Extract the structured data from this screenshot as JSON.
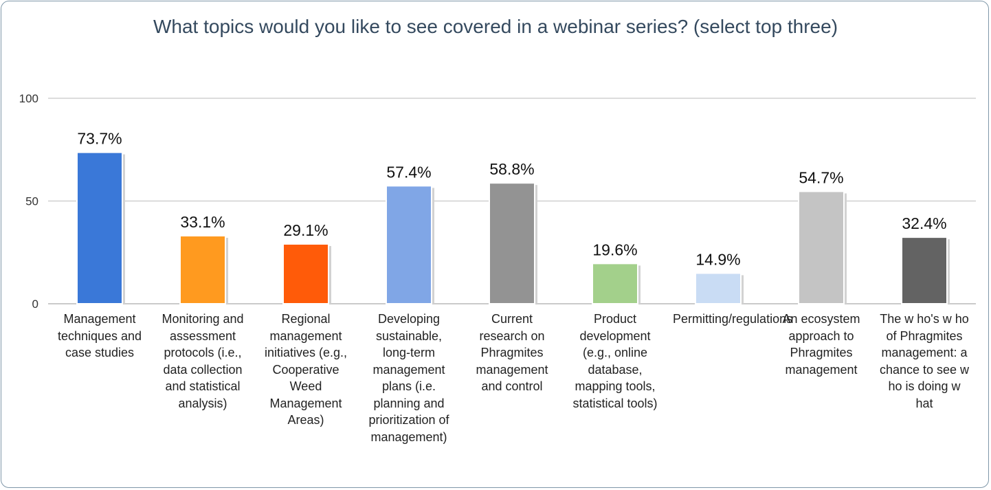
{
  "chart_data": {
    "type": "bar",
    "title": "What topics would you like to see covered in a webinar series? (select top three)",
    "xlabel": "",
    "ylabel": "",
    "ylim": [
      0,
      100
    ],
    "yticks": [
      0,
      50,
      100
    ],
    "grid": true,
    "legend": "none",
    "categories": [
      "Management techniques and case studies",
      "Monitoring and assessment protocols (i.e., data collection and statistical analysis)",
      "Regional management initiatives (e.g., Cooperative Weed Management Areas)",
      "Developing sustainable, long-term management plans (i.e. planning and prioritization of management)",
      "Current research on Phragmites management and control",
      "Product development (e.g., online database, mapping tools, statistical tools)",
      "Permitting/regulations",
      "An ecosystem approach to Phragmites management",
      "The w ho's w ho of Phragmites management: a chance to see w ho is doing w hat"
    ],
    "values": [
      73.7,
      33.1,
      29.1,
      57.4,
      58.8,
      19.6,
      14.9,
      54.7,
      32.4
    ],
    "value_labels": [
      "73.7%",
      "33.1%",
      "29.1%",
      "57.4%",
      "58.8%",
      "19.6%",
      "14.9%",
      "54.7%",
      "32.4%"
    ],
    "colors": [
      "#3a78d8",
      "#ff9a1f",
      "#ff5b09",
      "#80a6e6",
      "#939393",
      "#a3d08b",
      "#c9dcf4",
      "#c4c4c4",
      "#636363"
    ]
  }
}
